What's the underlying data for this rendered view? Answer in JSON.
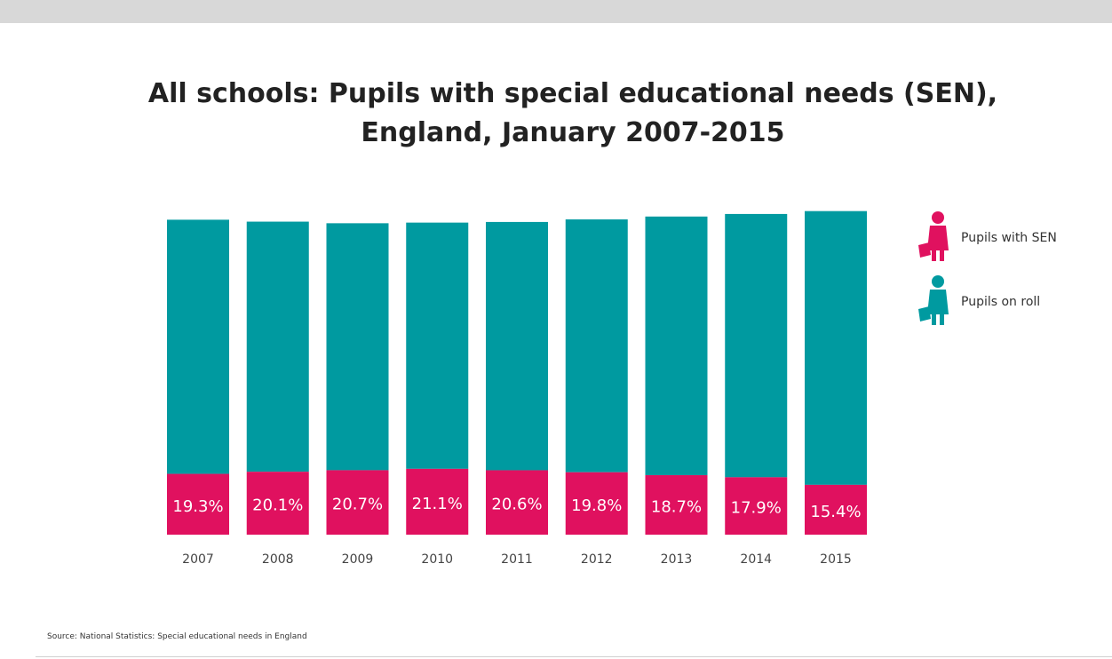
{
  "title_line1": "All schools: Pupils with special educational needs (SEN),",
  "title_line2": "England, January 2007-2015",
  "source": "Source: National Statistics: Special educational needs in England",
  "colors": {
    "sen": "#e0115f",
    "roll": "#009aa0",
    "label": "#ffffff",
    "tick": "#444444"
  },
  "legend": [
    {
      "label": "Pupils with SEN",
      "color": "#e0115f",
      "icon": "pupil-icon"
    },
    {
      "label": "Pupils on roll",
      "color": "#009aa0",
      "icon": "pupil-icon"
    }
  ],
  "chart_data": {
    "type": "bar",
    "stacked": true,
    "categories": [
      "2007",
      "2008",
      "2009",
      "2010",
      "2011",
      "2012",
      "2013",
      "2014",
      "2015"
    ],
    "series": [
      {
        "name": "Pupils with SEN",
        "percent_labels": [
          "19.3%",
          "20.1%",
          "20.7%",
          "21.1%",
          "20.6%",
          "19.8%",
          "18.7%",
          "17.9%",
          "15.4%"
        ],
        "values": [
          19.3,
          20.1,
          20.7,
          21.1,
          20.6,
          19.8,
          18.7,
          17.9,
          15.4
        ]
      },
      {
        "name": "Pupils on roll",
        "relative_total": [
          98.5,
          97.9,
          97.4,
          97.6,
          97.8,
          98.6,
          99.5,
          100.3,
          101.2
        ]
      }
    ],
    "grid": false,
    "legend_position": "right"
  }
}
